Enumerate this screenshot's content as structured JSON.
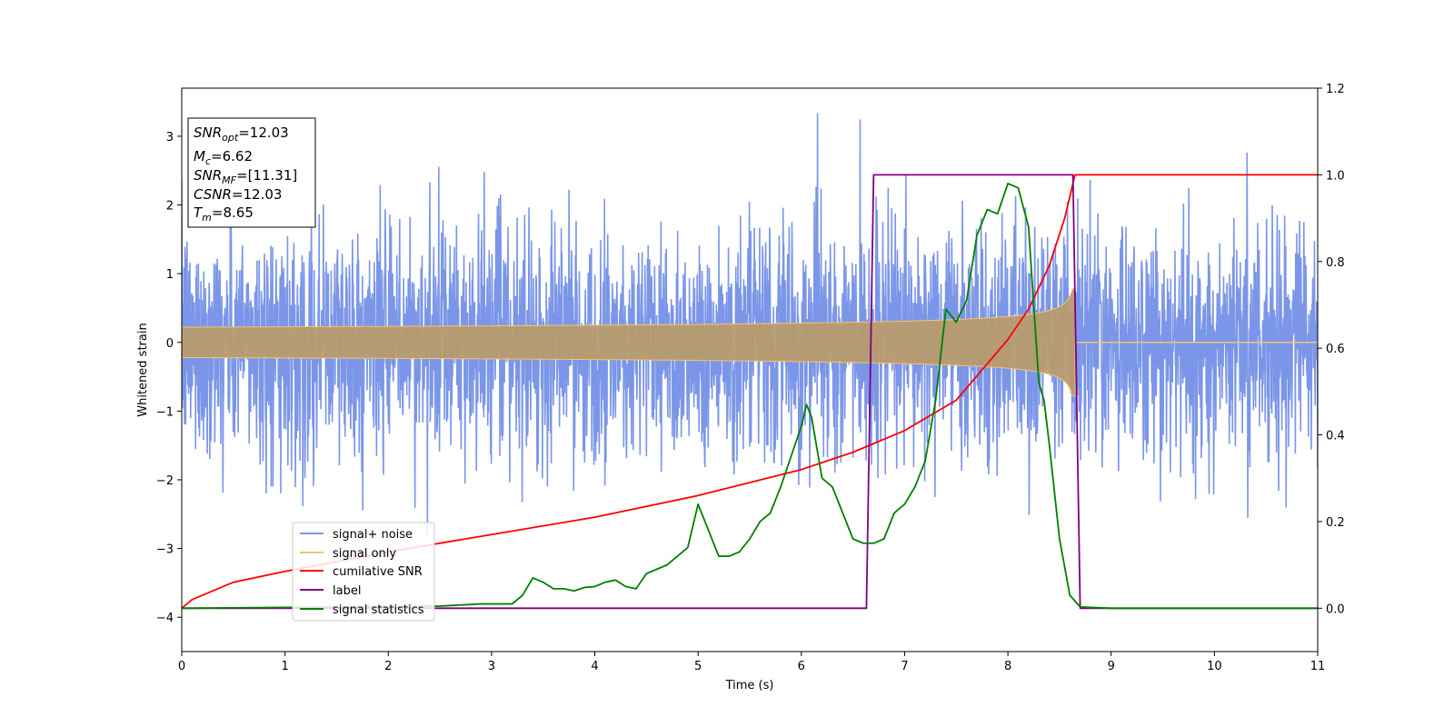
{
  "chart_data": {
    "type": "line",
    "xlabel": "Time (s)",
    "ylabel": "Whitened strain",
    "xlim": [
      0,
      11
    ],
    "ylim": [
      -4.5,
      3.7
    ],
    "y2lim": [
      -0.1,
      1.2
    ],
    "xticks": [
      0,
      1,
      2,
      3,
      4,
      5,
      6,
      7,
      8,
      9,
      10,
      11
    ],
    "yticks": [
      -4,
      -3,
      -2,
      -1,
      0,
      1,
      2,
      3
    ],
    "y2ticks": [
      0.0,
      0.2,
      0.4,
      0.6,
      0.8,
      1.0,
      1.2
    ],
    "legend_position": "lower-left",
    "info_box": [
      {
        "sym": "SNR",
        "sub": "opt",
        "value": "=12.03"
      },
      {
        "sym": "M",
        "sub": "c",
        "value": "=6.62"
      },
      {
        "sym": "SNR",
        "sub": "MF",
        "value": "=[11.31]"
      },
      {
        "sym": "CSNR",
        "sub": "",
        "value": "=12.03"
      },
      {
        "sym": "T",
        "sub": "m",
        "value": "=8.65"
      }
    ],
    "series": [
      {
        "name": "signal+ noise",
        "color": "#7b96e8",
        "axis": "left",
        "kind": "noise",
        "std": 0.85,
        "duration": [
          0,
          11
        ]
      },
      {
        "name": "signal only",
        "color": "#f5c46e",
        "axis": "left",
        "kind": "chirp",
        "amplitude_start": 0.05,
        "amplitude_peak": 0.78,
        "merger_time": 8.65
      },
      {
        "name": "cumilative SNR",
        "color": "#ff0000",
        "axis": "right",
        "x": [
          0,
          0.1,
          0.5,
          1,
          2,
          3,
          4,
          5,
          6,
          6.5,
          7,
          7.5,
          8,
          8.2,
          8.4,
          8.55,
          8.65,
          11
        ],
        "y": [
          0.0,
          0.02,
          0.06,
          0.085,
          0.13,
          0.17,
          0.21,
          0.26,
          0.32,
          0.36,
          0.41,
          0.48,
          0.62,
          0.69,
          0.79,
          0.9,
          1.0,
          1.0
        ]
      },
      {
        "name": "label",
        "color": "#800080",
        "axis": "right",
        "x": [
          0,
          6.63,
          6.7,
          8.63,
          8.7,
          11
        ],
        "y": [
          0,
          0,
          1,
          1,
          0,
          0
        ]
      },
      {
        "name": "signal statistics",
        "color": "#008000",
        "axis": "right",
        "x": [
          0,
          1,
          2,
          2.5,
          2.9,
          3.0,
          3.2,
          3.3,
          3.4,
          3.5,
          3.6,
          3.7,
          3.8,
          3.9,
          4.0,
          4.1,
          4.2,
          4.3,
          4.4,
          4.5,
          4.6,
          4.7,
          4.8,
          4.9,
          5.0,
          5.1,
          5.2,
          5.3,
          5.4,
          5.5,
          5.6,
          5.7,
          5.8,
          5.9,
          6.0,
          6.05,
          6.1,
          6.2,
          6.3,
          6.4,
          6.5,
          6.6,
          6.7,
          6.8,
          6.9,
          7.0,
          7.1,
          7.2,
          7.3,
          7.4,
          7.5,
          7.6,
          7.7,
          7.8,
          7.9,
          8.0,
          8.1,
          8.2,
          8.3,
          8.35,
          8.4,
          8.5,
          8.6,
          8.7,
          9.0,
          10,
          11
        ],
        "y": [
          0.0,
          0.002,
          0.004,
          0.005,
          0.01,
          0.01,
          0.01,
          0.03,
          0.07,
          0.06,
          0.045,
          0.045,
          0.04,
          0.048,
          0.05,
          0.06,
          0.065,
          0.05,
          0.045,
          0.08,
          0.09,
          0.1,
          0.12,
          0.14,
          0.24,
          0.18,
          0.12,
          0.12,
          0.13,
          0.16,
          0.2,
          0.22,
          0.28,
          0.35,
          0.42,
          0.47,
          0.44,
          0.3,
          0.28,
          0.22,
          0.16,
          0.15,
          0.15,
          0.16,
          0.22,
          0.24,
          0.28,
          0.34,
          0.48,
          0.69,
          0.66,
          0.71,
          0.86,
          0.92,
          0.91,
          0.98,
          0.97,
          0.88,
          0.52,
          0.48,
          0.38,
          0.16,
          0.03,
          0.003,
          0.0,
          0.0,
          0.0
        ]
      }
    ]
  }
}
